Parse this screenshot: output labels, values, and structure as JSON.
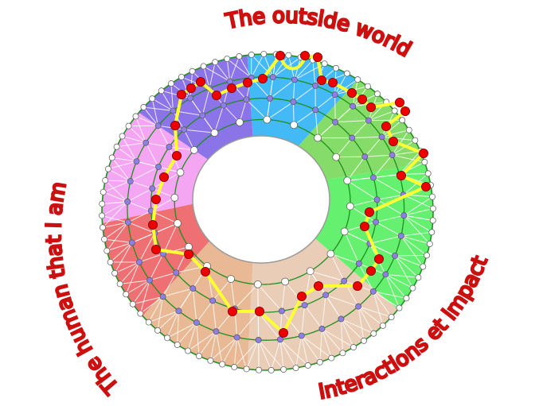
{
  "labels": {
    "top": "The outside world",
    "left": "The human that I am",
    "bottom_right": "Interactions et impact"
  },
  "colors": {
    "sectors": [
      "#43b9f6",
      "#86dc68",
      "#66f06f",
      "#e9cdb6",
      "#e8b994",
      "#ef7072",
      "#f5a6f2",
      "#8b73e8"
    ],
    "ring_line": "#1f8f1f",
    "outer_node": "#ffffff",
    "ring_node": "#8e7ee6",
    "path": "#ffff33",
    "path_node": "#ee0000",
    "label": "#cc0f0f"
  }
}
